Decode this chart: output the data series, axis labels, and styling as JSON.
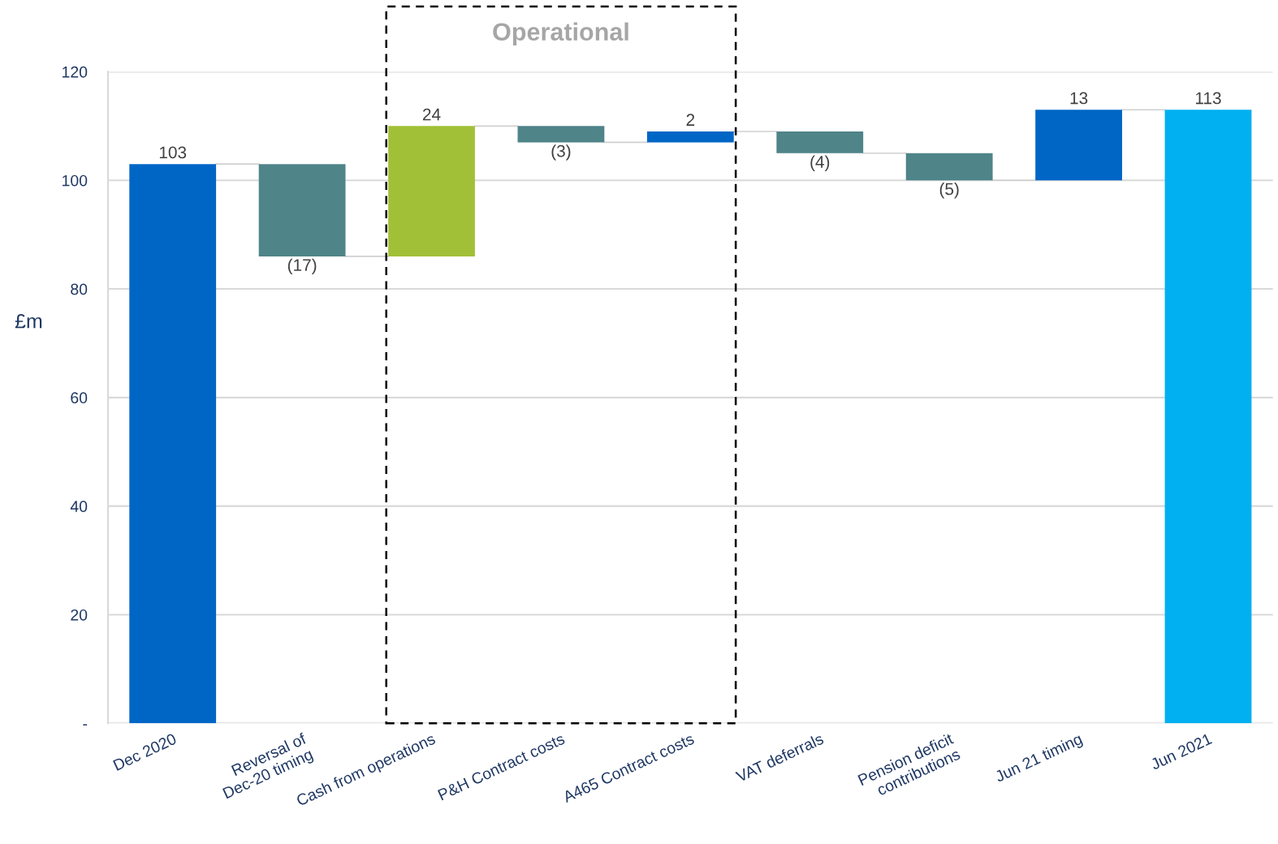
{
  "chart_data": {
    "type": "bar",
    "ylabel": "£m",
    "categories": [
      "Dec 2020",
      "Reversal of\nDec-20 timing",
      "Cash from operations",
      "P&H Contract costs",
      "A465 Contract costs",
      "VAT deferrals",
      "Pension deficit\ncontributions",
      "Jun 21 timing",
      "Jun 2021"
    ],
    "values": [
      103,
      -17,
      24,
      -3,
      2,
      -4,
      -5,
      13,
      113
    ],
    "base": [
      0,
      103,
      86,
      110,
      107,
      109,
      105,
      100,
      0
    ],
    "colors": [
      "#0066c6",
      "#4f8489",
      "#a2c037",
      "#4f8489",
      "#0066c6",
      "#4f8489",
      "#4f8489",
      "#0066c6",
      "#00b0f0"
    ],
    "value_labels": [
      "103",
      "(17)",
      "24",
      "(3)",
      "2",
      "(4)",
      "(5)",
      "13",
      "113"
    ],
    "ylim": [
      0,
      120
    ],
    "yticks": [
      {
        "value": 0,
        "label": "-"
      },
      20,
      40,
      60,
      80,
      100,
      120
    ],
    "grid": "y",
    "annotations": [
      "Operational"
    ]
  }
}
